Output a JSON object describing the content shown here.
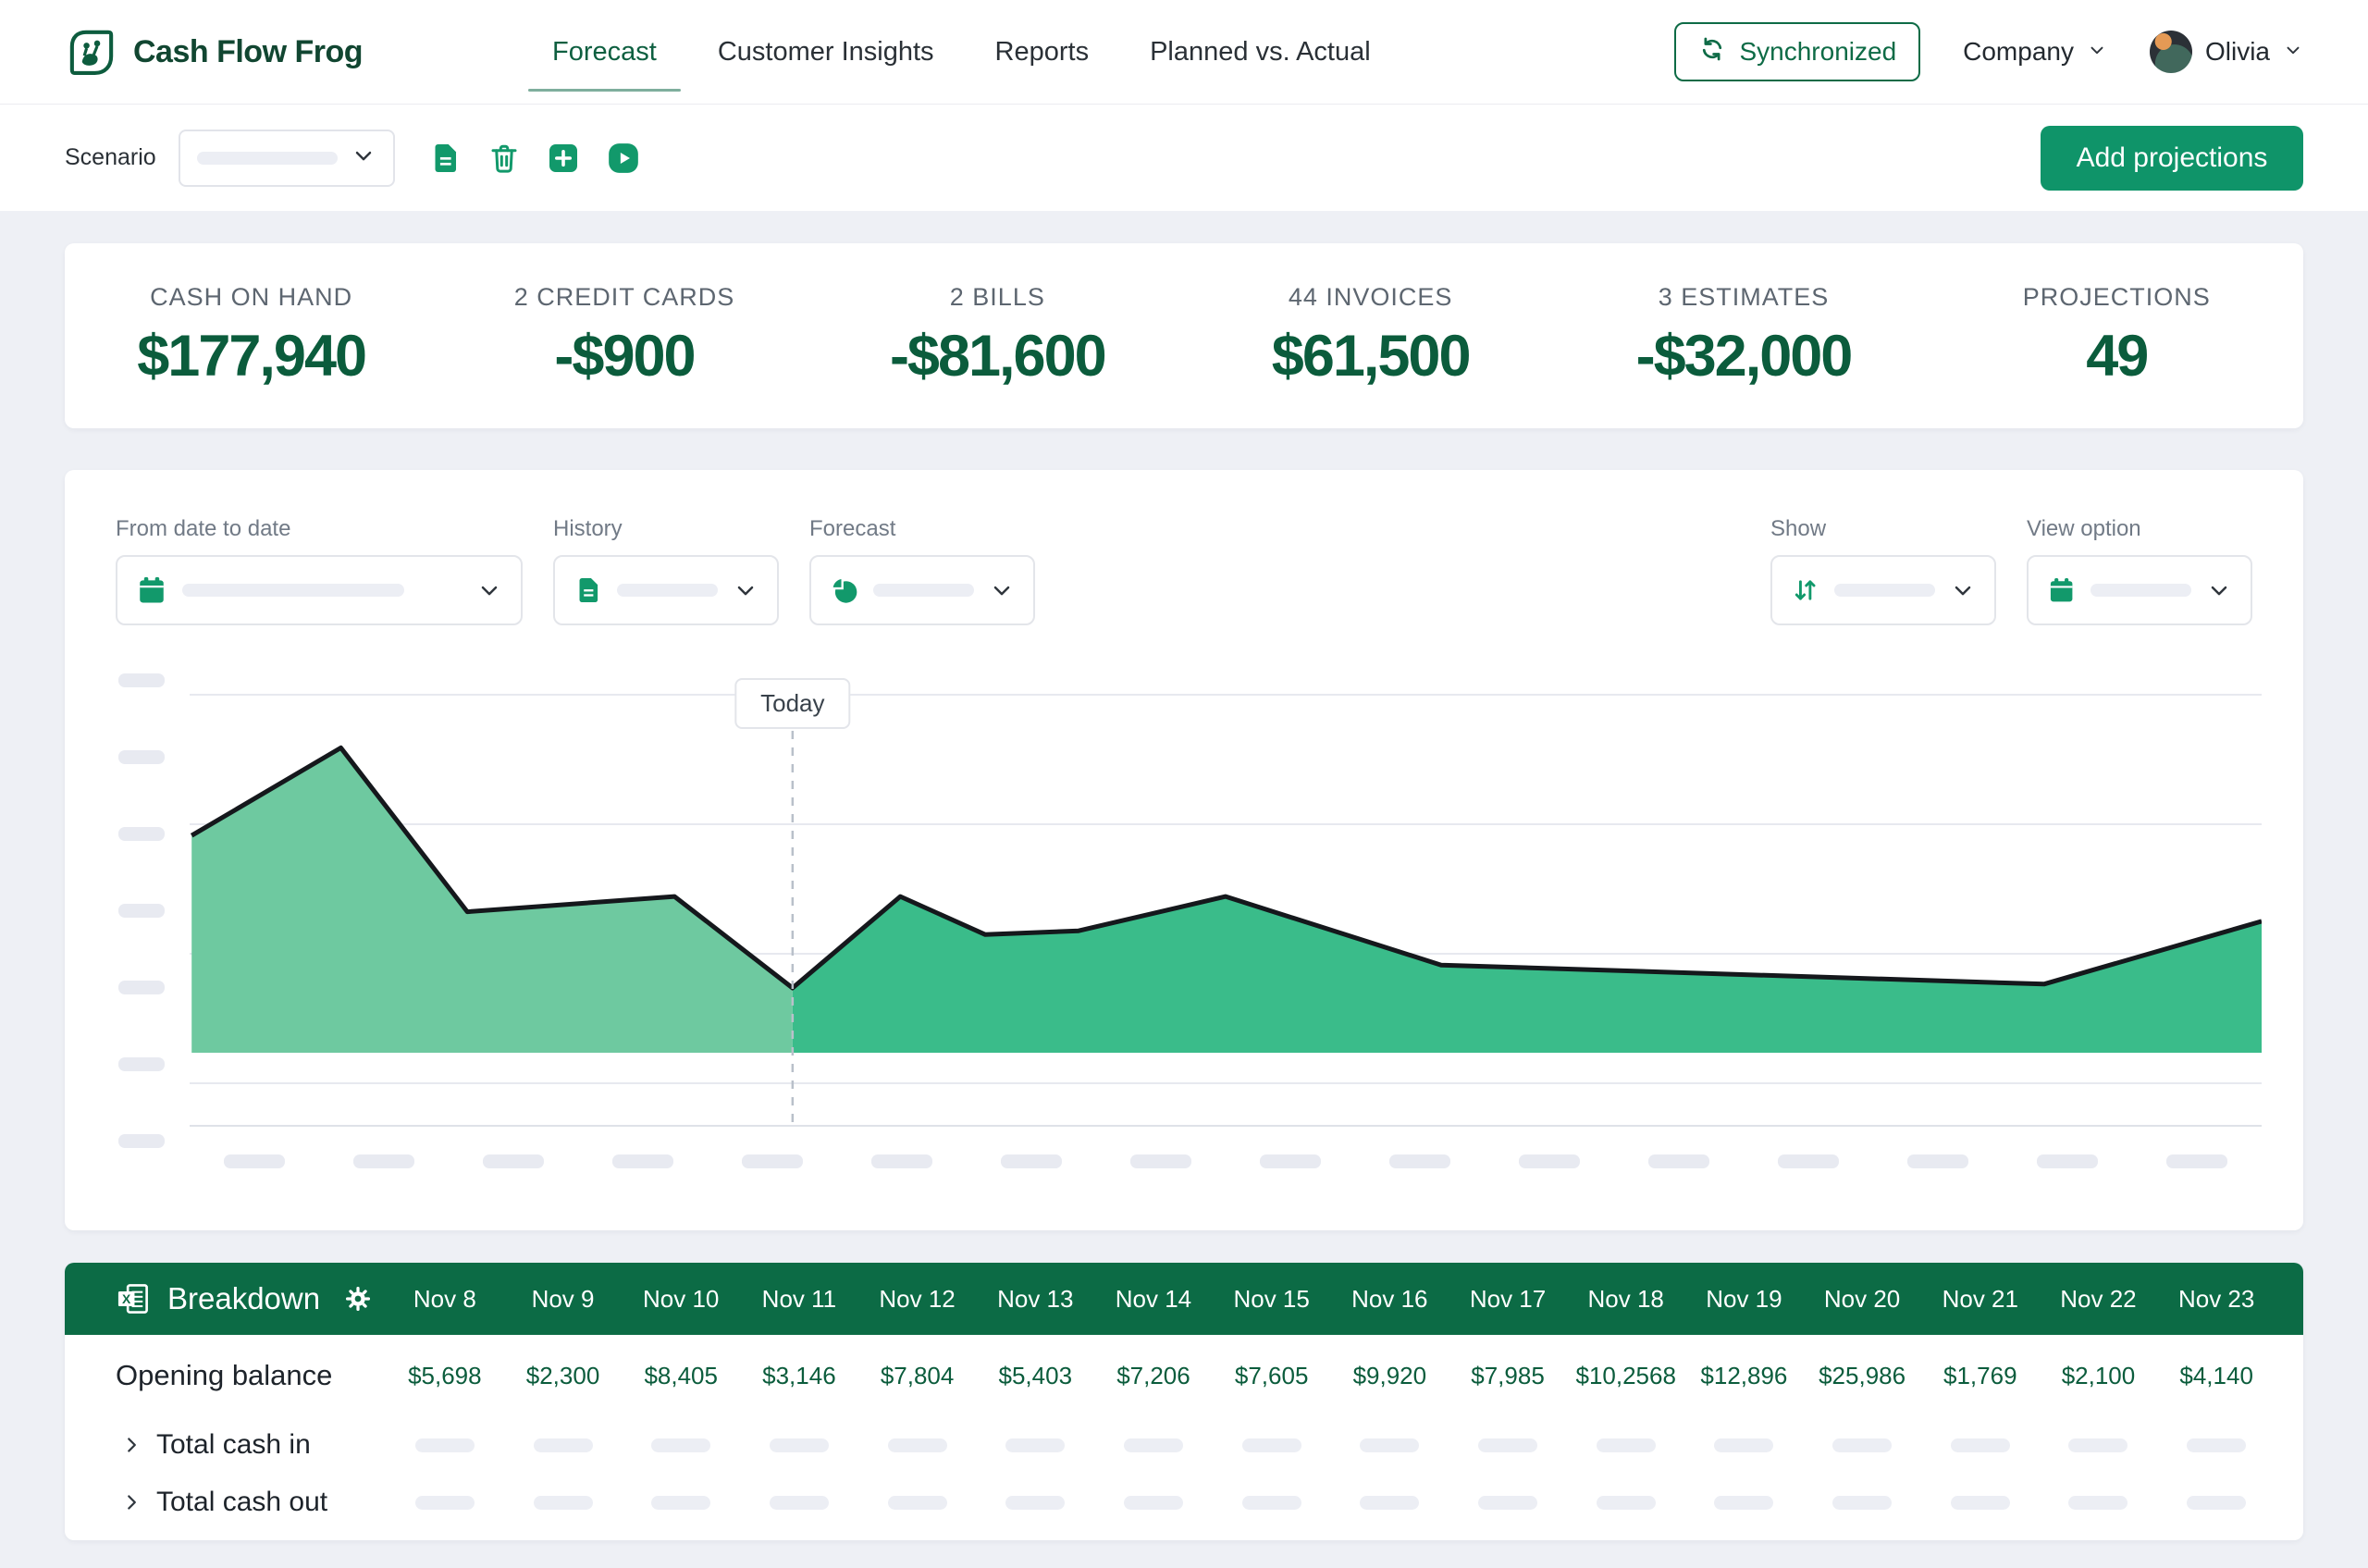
{
  "brand": {
    "name": "Cash Flow Frog"
  },
  "nav": {
    "tabs": [
      {
        "label": "Forecast",
        "active": true
      },
      {
        "label": "Customer Insights",
        "active": false
      },
      {
        "label": "Reports",
        "active": false
      },
      {
        "label": "Planned vs. Actual",
        "active": false
      }
    ],
    "sync_label": "Synchronized",
    "company_label": "Company",
    "user_name": "Olivia"
  },
  "scenario": {
    "label": "Scenario",
    "selected_value": "",
    "actions": [
      {
        "name": "scenario-file",
        "icon": "document-icon"
      },
      {
        "name": "delete-scenario",
        "icon": "trash-icon"
      },
      {
        "name": "add-scenario",
        "icon": "plus-icon"
      },
      {
        "name": "scenario-video",
        "icon": "play-icon"
      }
    ],
    "add_projections_label": "Add projections"
  },
  "stats": [
    {
      "label": "CASH ON HAND",
      "value": "$177,940"
    },
    {
      "label": "2 CREDIT CARDS",
      "value": "-$900"
    },
    {
      "label": "2 BILLS",
      "value": "-$81,600"
    },
    {
      "label": "44 INVOICES",
      "value": "$61,500"
    },
    {
      "label": "3 ESTIMATES",
      "value": "-$32,000"
    },
    {
      "label": "PROJECTIONS",
      "value": "49"
    }
  ],
  "filters": {
    "left": [
      {
        "label": "From date to date",
        "icon": "calendar-icon",
        "wide": true
      },
      {
        "label": "History",
        "icon": "document-icon",
        "wide": false
      },
      {
        "label": "Forecast",
        "icon": "pie-icon",
        "wide": false
      }
    ],
    "right": [
      {
        "label": "Show",
        "icon": "sort-icon",
        "wide": false
      },
      {
        "label": "View option",
        "icon": "calendar-icon",
        "wide": false
      }
    ]
  },
  "chart": {
    "today_label": "Today",
    "chart_data": {
      "type": "area",
      "title": "",
      "xlabel": "dates (placeholder ticks)",
      "ylabel": "cash balance (placeholder ticks)",
      "grid": true,
      "x_tick_count": 16,
      "y_tick_count": 7,
      "today_x": 0.291,
      "series": [
        {
          "name": "history",
          "color": "#6ec9a0"
        },
        {
          "name": "forecast",
          "color": "#3abc8a"
        }
      ],
      "points": [
        {
          "x": 0.001,
          "v": 57
        },
        {
          "x": 0.073,
          "v": 80
        },
        {
          "x": 0.134,
          "v": 37
        },
        {
          "x": 0.234,
          "v": 41
        },
        {
          "x": 0.291,
          "v": 17
        },
        {
          "x": 0.343,
          "v": 41
        },
        {
          "x": 0.384,
          "v": 31
        },
        {
          "x": 0.429,
          "v": 32
        },
        {
          "x": 0.5,
          "v": 41
        },
        {
          "x": 0.604,
          "v": 23
        },
        {
          "x": 0.895,
          "v": 18
        },
        {
          "x": 1.0,
          "v": 34.5
        }
      ]
    }
  },
  "breakdown": {
    "title": "Breakdown",
    "columns": [
      "Nov 8",
      "Nov 9",
      "Nov 10",
      "Nov 11",
      "Nov 12",
      "Nov 13",
      "Nov 14",
      "Nov 15",
      "Nov 16",
      "Nov 17",
      "Nov 18",
      "Nov 19",
      "Nov 20",
      "Nov 21",
      "Nov 22",
      "Nov 23"
    ],
    "rows": [
      {
        "label": "Opening balance",
        "expandable": false,
        "values": [
          "$5,698",
          "$2,300",
          "$8,405",
          "$3,146",
          "$7,804",
          "$5,403",
          "$7,206",
          "$7,605",
          "$9,920",
          "$7,985",
          "$10,2568",
          "$12,896",
          "$25,986",
          "$1,769",
          "$2,100",
          "$4,140"
        ]
      },
      {
        "label": "Total cash in",
        "expandable": true,
        "values": null
      },
      {
        "label": "Total cash out",
        "expandable": true,
        "values": null
      }
    ]
  },
  "colors": {
    "accent_button": "#0f9469",
    "table_header": "#0c6b45",
    "icon_green": "#12996b",
    "value_green": "#0b5c3c",
    "history_fill": "#6ec9a0",
    "forecast_fill": "#3abc8a"
  }
}
